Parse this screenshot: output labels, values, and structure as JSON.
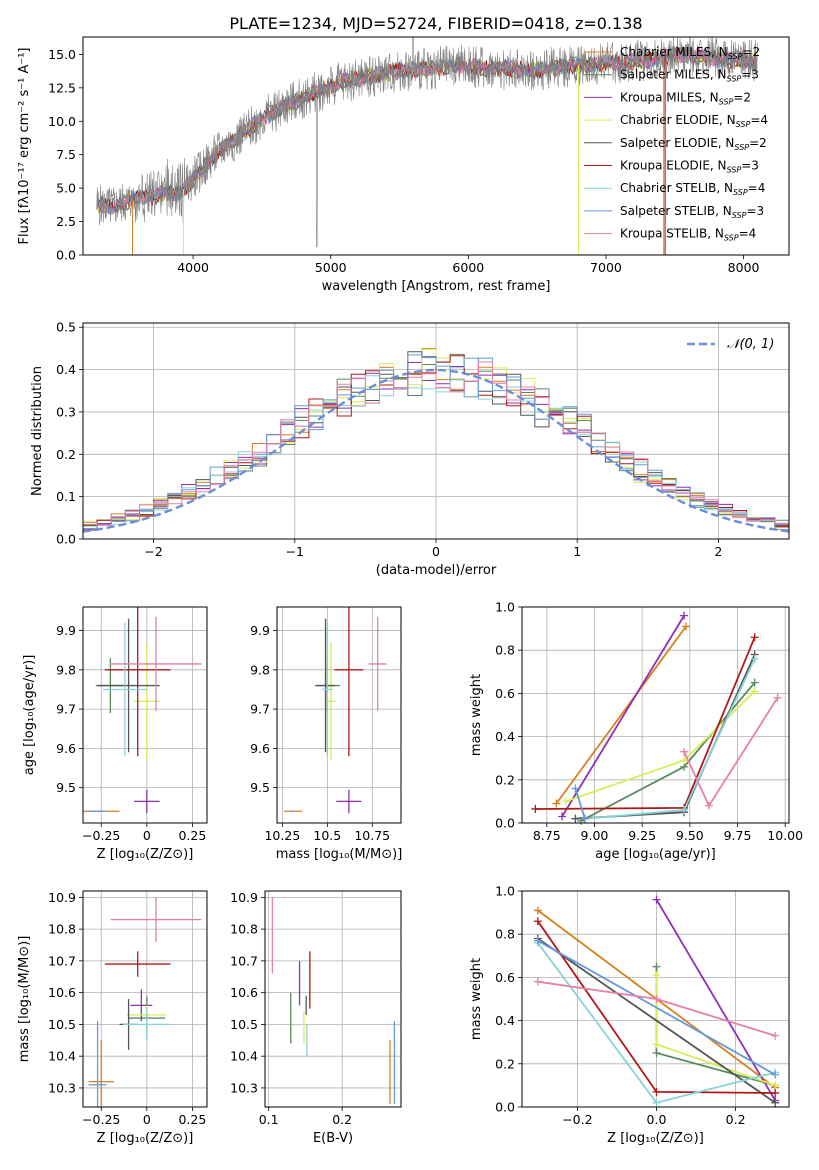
{
  "figure_title": "PLATE=1234, MJD=52724, FIBERID=0418, z=0.138",
  "colors": {
    "model1": "#d97f1e",
    "model2": "#5a8a5e",
    "model3": "#8e2fb5",
    "model4": "#d6ec5a",
    "model5": "#555555",
    "model6": "#b01818",
    "model7": "#86d3d8",
    "model8": "#6699dd",
    "model9": "#e87fa5",
    "normal": "#6a8fd8"
  },
  "chart_data": [
    {
      "id": "spectrum",
      "type": "line",
      "xlabel": "wavelength [Angstrom, rest frame]",
      "ylabel": "Flux [fλ10⁻¹⁷ erg cm⁻² s⁻¹ A⁻¹]",
      "xlim": [
        3200,
        8330
      ],
      "ylim": [
        0,
        16.3
      ],
      "xticks": [
        4000,
        5000,
        6000,
        7000,
        8000
      ],
      "yticks": [
        0.0,
        2.5,
        5.0,
        7.5,
        10.0,
        12.5,
        15.0
      ],
      "spectrum_anchors": {
        "x": [
          3300,
          3400,
          3500,
          3600,
          3700,
          3800,
          3900,
          4000,
          4100,
          4200,
          4300,
          4500,
          4700,
          4900,
          5100,
          5300,
          5500,
          5700,
          5900,
          6100,
          6300,
          6500,
          6700,
          6900,
          7100,
          7300,
          7500,
          7700,
          7900,
          8100
        ],
        "y": [
          3.8,
          3.6,
          3.9,
          4.4,
          4.3,
          4.7,
          4.6,
          5.7,
          6.8,
          7.9,
          8.6,
          10.2,
          11.3,
          12.2,
          13.0,
          13.4,
          13.8,
          13.9,
          14.2,
          14.0,
          13.9,
          13.8,
          14.1,
          14.3,
          14.4,
          14.6,
          15.0,
          14.8,
          14.6,
          14.5
        ]
      },
      "legend": [
        "Chabrier MILES, N_SSP=2",
        "Salpeter MILES, N_SSP=3",
        "Kroupa MILES, N_SSP=2",
        "Chabrier ELODIE, N_SSP=4",
        "Salpeter ELODIE, N_SSP=2",
        "Kroupa ELODIE, N_SSP=3",
        "Chabrier STELIB, N_SSP=4",
        "Salpeter STELIB, N_SSP=3",
        "Kroupa STELIB, N_SSP=4"
      ],
      "legend_placement": "upper right",
      "grid": false
    },
    {
      "id": "residuals",
      "type": "line",
      "xlabel": "(data-model)/error",
      "ylabel": "Normed distribution",
      "xlim": [
        -2.5,
        2.5
      ],
      "ylim": [
        0,
        0.51
      ],
      "xticks": [
        -2,
        -1,
        0,
        1,
        2
      ],
      "yticks": [
        0.0,
        0.1,
        0.2,
        0.3,
        0.4,
        0.5
      ],
      "legend": [
        "𝒩(0, 1)"
      ],
      "legend_placement": "upper right",
      "grid": true
    },
    {
      "id": "age_vs_Z",
      "type": "scatter",
      "xlabel": "Z [log₁₀(Z/Z⊙)]",
      "ylabel": "age  [log₁₀(age/yr)]",
      "xlim": [
        -0.35,
        0.33
      ],
      "ylim": [
        9.41,
        9.96
      ],
      "xticks": [
        -0.25,
        0.0,
        0.25
      ],
      "yticks": [
        9.5,
        9.6,
        9.7,
        9.8,
        9.9
      ],
      "points": [
        {
          "x": -0.25,
          "y": 9.44,
          "xerr": 0.1,
          "yerr": 0.0
        },
        {
          "x": -0.2,
          "y": 9.76,
          "xerr": 0.08,
          "yerr": 0.07
        },
        {
          "x": 0.0,
          "y": 9.465,
          "xerr": 0.07,
          "yerr": 0.03
        },
        {
          "x": 0.0,
          "y": 9.72,
          "xerr": 0.07,
          "yerr": 0.15
        },
        {
          "x": -0.1,
          "y": 9.76,
          "xerr": 0.17,
          "yerr": 0.17
        },
        {
          "x": -0.05,
          "y": 9.8,
          "xerr": 0.18,
          "yerr": 0.22
        },
        {
          "x": -0.12,
          "y": 9.75,
          "xerr": 0.12,
          "yerr": 0.17
        },
        {
          "x": -0.27,
          "y": 9.44,
          "xerr": 0.05,
          "yerr": 0.0
        },
        {
          "x": 0.05,
          "y": 9.815,
          "xerr": 0.25,
          "yerr": 0.12
        }
      ],
      "grid": true
    },
    {
      "id": "age_vs_mass",
      "type": "scatter",
      "xlabel": "mass [log₁₀(M/M⊙)]",
      "ylabel": "",
      "xlim": [
        10.22,
        10.91
      ],
      "ylim": [
        9.41,
        9.96
      ],
      "xticks": [
        10.25,
        10.5,
        10.75
      ],
      "yticks": [
        9.5,
        9.6,
        9.7,
        9.8,
        9.9
      ],
      "points": [
        {
          "x": 10.31,
          "y": 9.44,
          "xerr": 0.05,
          "yerr": 0.0
        },
        {
          "x": 10.5,
          "y": 9.76,
          "xerr": 0.07,
          "yerr": 0.07
        },
        {
          "x": 10.62,
          "y": 9.465,
          "xerr": 0.07,
          "yerr": 0.03
        },
        {
          "x": 10.52,
          "y": 9.72,
          "xerr": 0.03,
          "yerr": 0.15
        },
        {
          "x": 10.49,
          "y": 9.76,
          "xerr": 0.05,
          "yerr": 0.17
        },
        {
          "x": 10.62,
          "y": 9.8,
          "xerr": 0.08,
          "yerr": 0.22
        },
        {
          "x": 10.5,
          "y": 9.75,
          "xerr": 0.03,
          "yerr": 0.17
        },
        {
          "x": 10.3,
          "y": 9.44,
          "xerr": 0.01,
          "yerr": 0.0
        },
        {
          "x": 10.78,
          "y": 9.815,
          "xerr": 0.05,
          "yerr": 0.12
        }
      ],
      "grid": true
    },
    {
      "id": "weight_vs_age",
      "type": "line",
      "xlabel": "age  [log₁₀(age/yr)]",
      "ylabel": "mass weight",
      "xlim": [
        8.62,
        10.02
      ],
      "ylim": [
        0,
        1.0
      ],
      "xticks": [
        8.75,
        9.0,
        9.25,
        9.5,
        9.75,
        10.0
      ],
      "yticks": [
        0.0,
        0.2,
        0.4,
        0.6,
        0.8,
        1.0
      ],
      "series": [
        {
          "x": [
            8.8,
            9.48
          ],
          "y": [
            0.09,
            0.91
          ]
        },
        {
          "x": [
            8.93,
            9.47,
            9.84
          ],
          "y": [
            0.01,
            0.26,
            0.65
          ]
        },
        {
          "x": [
            8.83,
            9.47
          ],
          "y": [
            0.03,
            0.96
          ]
        },
        {
          "x": [
            8.85,
            9.47,
            9.84
          ],
          "y": [
            0.1,
            0.29,
            0.61
          ]
        },
        {
          "x": [
            8.9,
            9.47,
            9.84
          ],
          "y": [
            0.02,
            0.05,
            0.78
          ]
        },
        {
          "x": [
            8.69,
            9.47,
            9.84
          ],
          "y": [
            0.065,
            0.07,
            0.86
          ]
        },
        {
          "x": [
            8.95,
            9.47,
            9.84
          ],
          "y": [
            0.02,
            0.06,
            0.76
          ]
        },
        {
          "x": [
            8.9,
            8.95
          ],
          "y": [
            0.16,
            0.02
          ]
        },
        {
          "x": [
            9.47,
            9.6,
            9.96
          ],
          "y": [
            0.33,
            0.08,
            0.58
          ]
        }
      ],
      "grid": true
    },
    {
      "id": "mass_vs_Z",
      "type": "scatter",
      "xlabel": "Z [log₁₀(Z/Z⊙)]",
      "ylabel": "mass [log₁₀(M/M⊙)]",
      "xlim": [
        -0.35,
        0.33
      ],
      "ylim": [
        10.24,
        10.92
      ],
      "xticks": [
        -0.25,
        0.0,
        0.25
      ],
      "yticks": [
        10.3,
        10.4,
        10.5,
        10.6,
        10.7,
        10.8,
        10.9
      ],
      "points": [
        {
          "x": -0.25,
          "y": 10.32,
          "xerr": 0.07,
          "yerr": 0.13
        },
        {
          "x": 0.0,
          "y": 10.52,
          "xerr": 0.1,
          "yerr": 0.07
        },
        {
          "x": -0.03,
          "y": 10.56,
          "xerr": 0.06,
          "yerr": 0.05
        },
        {
          "x": 0.0,
          "y": 10.53,
          "xerr": 0.11,
          "yerr": 0.03
        },
        {
          "x": -0.1,
          "y": 10.5,
          "xerr": 0.05,
          "yerr": 0.08
        },
        {
          "x": -0.05,
          "y": 10.69,
          "xerr": 0.18,
          "yerr": 0.04
        },
        {
          "x": 0.0,
          "y": 10.5,
          "xerr": 0.13,
          "yerr": 0.05
        },
        {
          "x": -0.27,
          "y": 10.31,
          "xerr": 0.05,
          "yerr": 0.2
        },
        {
          "x": 0.05,
          "y": 10.83,
          "xerr": 0.25,
          "yerr": 0.07
        }
      ],
      "grid": true
    },
    {
      "id": "mass_vs_EBV",
      "type": "scatter",
      "xlabel": "E(B-V)",
      "ylabel": "",
      "xlim": [
        0.095,
        0.28
      ],
      "ylim": [
        10.24,
        10.92
      ],
      "xticks": [
        0.1,
        0.2
      ],
      "yticks": [
        10.3,
        10.4,
        10.5,
        10.6,
        10.7,
        10.8,
        10.9
      ],
      "points": [
        {
          "x": 0.265,
          "y": 10.35,
          "xerr": 0,
          "yerr": 0.1
        },
        {
          "x": 0.13,
          "y": 10.52,
          "xerr": 0,
          "yerr": 0.08
        },
        {
          "x": 0.142,
          "y": 10.63,
          "xerr": 0,
          "yerr": 0.07
        },
        {
          "x": 0.148,
          "y": 10.49,
          "xerr": 0,
          "yerr": 0.05
        },
        {
          "x": 0.151,
          "y": 10.56,
          "xerr": 0,
          "yerr": 0.03
        },
        {
          "x": 0.156,
          "y": 10.64,
          "xerr": 0,
          "yerr": 0.09
        },
        {
          "x": 0.152,
          "y": 10.45,
          "xerr": 0,
          "yerr": 0.05
        },
        {
          "x": 0.271,
          "y": 10.38,
          "xerr": 0,
          "yerr": 0.13
        },
        {
          "x": 0.105,
          "y": 10.78,
          "xerr": 0,
          "yerr": 0.12
        }
      ],
      "grid": true
    },
    {
      "id": "weight_vs_Z",
      "type": "line",
      "xlabel": "Z [log₁₀(Z/Z⊙)]",
      "ylabel": "mass weight",
      "xlim": [
        -0.34,
        0.335
      ],
      "ylim": [
        0,
        1.0
      ],
      "xticks": [
        -0.2,
        0.0,
        0.2
      ],
      "yticks": [
        0.0,
        0.2,
        0.4,
        0.6,
        0.8,
        1.0
      ],
      "series": [
        {
          "x": [
            -0.3,
            0.3
          ],
          "y": [
            0.91,
            0.09
          ]
        },
        {
          "x": [
            0.0,
            0.0,
            0.3
          ],
          "y": [
            0.65,
            0.25,
            0.1
          ]
        },
        {
          "x": [
            0.0,
            0.3
          ],
          "y": [
            0.96,
            0.03
          ]
        },
        {
          "x": [
            0.0,
            0.0,
            0.3
          ],
          "y": [
            0.61,
            0.29,
            0.1
          ]
        },
        {
          "x": [
            -0.3,
            0.3
          ],
          "y": [
            0.78,
            0.02
          ]
        },
        {
          "x": [
            -0.3,
            0.0,
            0.3
          ],
          "y": [
            0.86,
            0.07,
            0.065
          ]
        },
        {
          "x": [
            -0.3,
            0.0,
            0.3
          ],
          "y": [
            0.76,
            0.02,
            0.16
          ]
        },
        {
          "x": [
            -0.3,
            0.3
          ],
          "y": [
            0.77,
            0.15
          ]
        },
        {
          "x": [
            -0.3,
            0.0,
            0.3
          ],
          "y": [
            0.58,
            0.5,
            0.33
          ]
        }
      ],
      "grid": true
    }
  ]
}
